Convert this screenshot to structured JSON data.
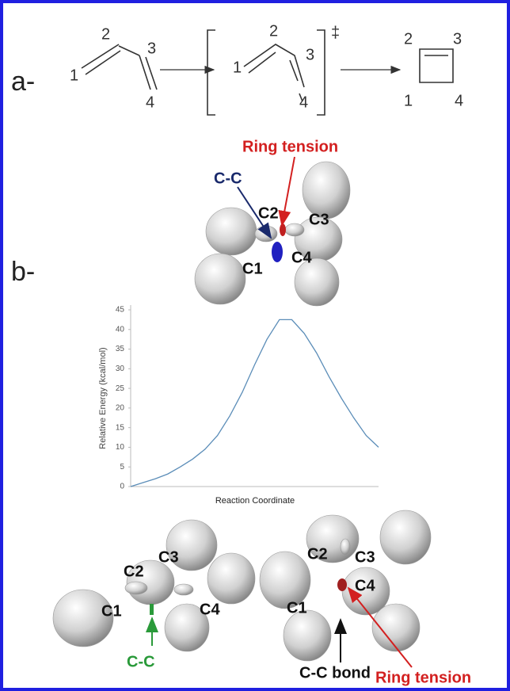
{
  "panel_a": {
    "label": "a-",
    "reactant": {
      "atoms": [
        "1",
        "2",
        "3",
        "4"
      ]
    },
    "transition_state": {
      "atoms": [
        "1",
        "2",
        "3",
        "4"
      ],
      "symbol": "‡"
    },
    "product": {
      "atoms": [
        "1",
        "2",
        "3",
        "4"
      ]
    }
  },
  "panel_b": {
    "label": "b-",
    "ts_structure": {
      "atoms": [
        "C1",
        "C2",
        "C3",
        "C4"
      ],
      "annotations": [
        "C-C",
        "Ring tension"
      ]
    },
    "reactant_structure": {
      "atoms": [
        "C1",
        "C2",
        "C3",
        "C4"
      ],
      "annotations": [
        "C-C"
      ]
    },
    "product_structure": {
      "atoms": [
        "C1",
        "C2",
        "C3",
        "C4"
      ],
      "annotations": [
        "C-C bond",
        "Ring tension"
      ]
    }
  },
  "chart_data": {
    "type": "line",
    "y_label": "Relative Energy (kcal/mol)",
    "x_label": "Reaction Coordinate",
    "categories": [
      null,
      null,
      null,
      null,
      null,
      null,
      null,
      null,
      null,
      null,
      null,
      null,
      null,
      null,
      null,
      null,
      null,
      null,
      null,
      null,
      null
    ],
    "values": [
      0,
      1,
      2,
      3.2,
      5,
      7,
      9.5,
      13,
      18,
      24,
      31,
      37.5,
      42.5,
      42.5,
      39,
      34,
      28,
      22.5,
      17.5,
      13,
      10
    ],
    "color": "#5b8db8",
    "ylim": [
      0,
      45
    ],
    "yticks": [
      0,
      5,
      10,
      15,
      20,
      25,
      30,
      35,
      40,
      45
    ],
    "grid": false
  }
}
